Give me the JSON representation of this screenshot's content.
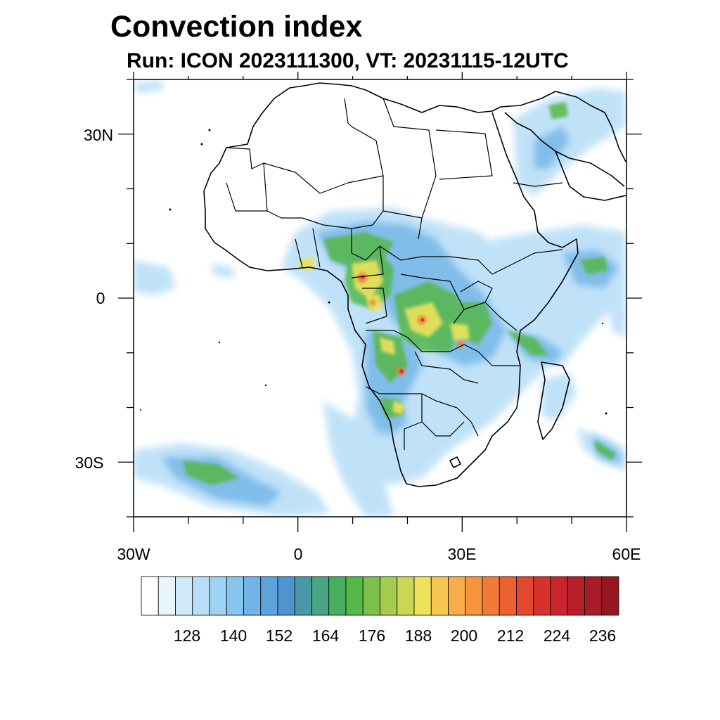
{
  "title": "Convection index",
  "subtitle": "Run: ICON 2023111300,  VT: 20231115-12UTC",
  "map": {
    "projection": "equirectangular",
    "lon_range": [
      -30,
      60
    ],
    "lat_range": [
      -40,
      40
    ],
    "lon_labels": [
      "30W",
      "0",
      "30E",
      "60E"
    ],
    "lat_labels": [
      "30N",
      "0",
      "30S"
    ]
  },
  "colorbar": {
    "colors": [
      "#ffffff",
      "#e9f5fd",
      "#cfe9fa",
      "#b6def7",
      "#9dd3f3",
      "#86c5ee",
      "#71b4e6",
      "#5ea3dc",
      "#4f94d0",
      "#4a98a6",
      "#48a482",
      "#49ad5e",
      "#55b84a",
      "#7cbf4b",
      "#a4cc4f",
      "#cbd754",
      "#eee25a",
      "#f7c752",
      "#f8ae48",
      "#f6943f",
      "#f27a38",
      "#ec6031",
      "#e3472e",
      "#d8312c",
      "#c9252c",
      "#b81f2a",
      "#a81b27",
      "#961722"
    ],
    "labels": [
      "128",
      "140",
      "152",
      "164",
      "176",
      "188",
      "200",
      "212",
      "224",
      "236"
    ]
  }
}
